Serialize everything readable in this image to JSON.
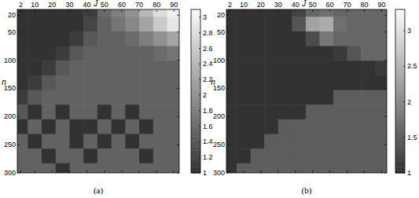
{
  "chart_data": [
    {
      "type": "heatmap",
      "title": "(a)",
      "x_label": "J",
      "y_label": "n",
      "x": [
        2,
        10,
        18,
        26,
        34,
        42,
        50,
        58,
        66,
        74,
        82,
        90
      ],
      "y": [
        10,
        36,
        62,
        88,
        114,
        140,
        166,
        192,
        218,
        244,
        270,
        296
      ],
      "xlim": [
        0,
        93
      ],
      "ylim": [
        10,
        300
      ],
      "xticks": [
        2,
        10,
        20,
        30,
        40,
        50,
        60,
        70,
        80,
        90
      ],
      "yticks": [
        20,
        50,
        100,
        150,
        200,
        250,
        300
      ],
      "cells": [
        [
          1.0,
          1.0,
          1.0,
          1.0,
          1.0,
          1.1,
          1.6,
          1.8,
          2.0,
          2.4,
          2.8,
          3.0
        ],
        [
          1.0,
          1.0,
          1.0,
          1.0,
          1.0,
          1.2,
          1.5,
          1.7,
          1.9,
          2.2,
          2.6,
          2.9
        ],
        [
          1.0,
          1.0,
          1.0,
          1.0,
          1.1,
          1.4,
          1.5,
          1.5,
          1.6,
          1.8,
          2.0,
          2.2
        ],
        [
          1.0,
          1.0,
          1.0,
          1.1,
          1.4,
          1.5,
          1.5,
          1.5,
          1.5,
          1.5,
          1.6,
          1.7
        ],
        [
          1.0,
          1.0,
          1.1,
          1.4,
          1.5,
          1.5,
          1.5,
          1.5,
          1.5,
          1.5,
          1.5,
          1.5
        ],
        [
          1.0,
          1.1,
          1.4,
          1.5,
          1.5,
          1.5,
          1.5,
          1.5,
          1.5,
          1.5,
          1.5,
          1.5
        ],
        [
          1.1,
          1.4,
          1.5,
          1.5,
          1.5,
          1.5,
          1.5,
          1.5,
          1.5,
          1.5,
          1.5,
          1.5
        ],
        [
          1.4,
          1.0,
          1.5,
          1.0,
          1.5,
          1.5,
          1.0,
          1.5,
          1.0,
          1.5,
          1.5,
          1.5
        ],
        [
          1.0,
          1.5,
          1.0,
          1.5,
          1.0,
          1.0,
          1.5,
          1.0,
          1.5,
          1.0,
          1.5,
          1.5
        ],
        [
          1.5,
          1.0,
          1.5,
          1.5,
          1.0,
          1.5,
          1.0,
          1.5,
          1.0,
          1.5,
          1.5,
          1.5
        ],
        [
          1.5,
          1.5,
          1.0,
          1.5,
          1.5,
          1.0,
          1.5,
          1.5,
          1.5,
          1.0,
          1.5,
          1.5
        ],
        [
          1.5,
          1.5,
          1.5,
          1.0,
          1.5,
          1.5,
          1.5,
          1.5,
          1.5,
          1.5,
          1.5,
          1.5
        ]
      ],
      "colorbar": {
        "range": [
          1,
          3.1
        ],
        "ticks": [
          1,
          1.2,
          1.4,
          1.6,
          1.8,
          2,
          2.2,
          2.4,
          2.6,
          2.8,
          3
        ]
      }
    },
    {
      "type": "heatmap",
      "title": "(b)",
      "x_label": "J",
      "y_label": "n",
      "x": [
        2,
        10,
        18,
        26,
        34,
        42,
        50,
        58,
        66,
        74,
        82,
        90
      ],
      "y": [
        10,
        36,
        62,
        88,
        114,
        140,
        166,
        192,
        218,
        244,
        270,
        296
      ],
      "xlim": [
        0,
        93
      ],
      "ylim": [
        10,
        300
      ],
      "xticks": [
        2,
        10,
        20,
        30,
        40,
        50,
        60,
        70,
        80,
        90
      ],
      "yticks": [
        20,
        50,
        100,
        150,
        200,
        250,
        300
      ],
      "cells": [
        [
          1.0,
          1.0,
          1.0,
          1.0,
          1.0,
          1.2,
          1.6,
          1.7,
          1.6,
          1.6,
          1.6,
          1.6
        ],
        [
          1.0,
          1.0,
          1.0,
          1.0,
          1.0,
          1.4,
          2.3,
          2.4,
          1.7,
          1.6,
          1.6,
          1.6
        ],
        [
          1.0,
          1.0,
          1.0,
          1.0,
          1.0,
          1.0,
          1.3,
          1.8,
          1.6,
          1.6,
          1.6,
          1.6
        ],
        [
          1.0,
          1.0,
          1.0,
          1.0,
          1.0,
          1.0,
          1.0,
          1.0,
          1.1,
          1.4,
          1.6,
          1.6
        ],
        [
          1.0,
          1.0,
          1.0,
          1.0,
          1.0,
          1.0,
          1.0,
          1.0,
          1.0,
          1.0,
          1.0,
          1.1
        ],
        [
          1.0,
          1.0,
          1.0,
          1.0,
          1.0,
          1.0,
          1.0,
          1.0,
          1.0,
          1.0,
          1.0,
          1.0
        ],
        [
          1.0,
          1.0,
          1.0,
          1.0,
          1.0,
          1.0,
          1.0,
          1.0,
          1.5,
          1.5,
          1.5,
          1.5
        ],
        [
          1.0,
          1.0,
          1.0,
          1.0,
          1.0,
          1.0,
          1.5,
          1.5,
          1.5,
          1.5,
          1.5,
          1.5
        ],
        [
          1.0,
          1.0,
          1.0,
          1.0,
          1.5,
          1.5,
          1.5,
          1.5,
          1.5,
          1.5,
          1.5,
          1.5
        ],
        [
          1.0,
          1.0,
          1.0,
          1.5,
          1.5,
          1.5,
          1.5,
          1.5,
          1.5,
          1.5,
          1.5,
          1.5
        ],
        [
          1.0,
          1.0,
          1.5,
          1.5,
          1.5,
          1.5,
          1.5,
          1.5,
          1.5,
          1.5,
          1.5,
          1.5
        ],
        [
          1.0,
          1.5,
          1.5,
          1.5,
          1.5,
          1.5,
          1.5,
          1.5,
          1.5,
          1.5,
          1.5,
          1.5
        ]
      ],
      "colorbar": {
        "range": [
          1,
          3.3
        ],
        "ticks": [
          1,
          1.5,
          2,
          2.5,
          3
        ]
      }
    }
  ]
}
